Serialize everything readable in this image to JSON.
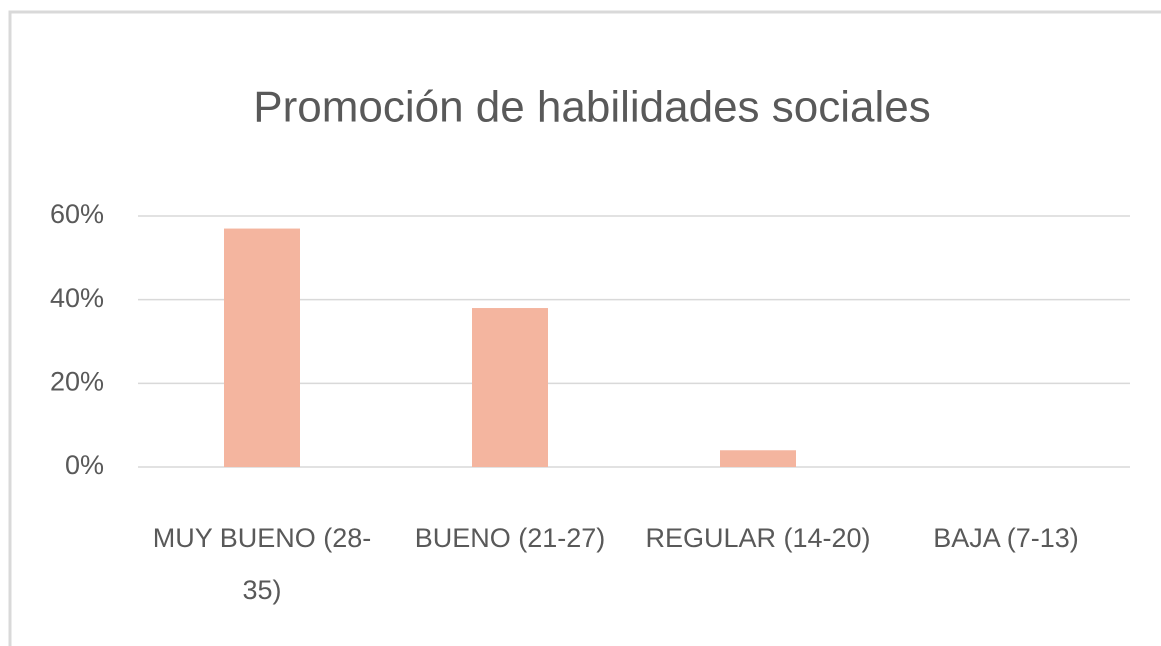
{
  "chart_data": {
    "type": "bar",
    "title": "Promoción de habilidades sociales",
    "categories": [
      "MUY BUENO (28-35)",
      "BUENO (21-27)",
      "REGULAR (14-20)",
      "BAJA (7-13)"
    ],
    "values": [
      57,
      38,
      4,
      0
    ],
    "color": "#f4b59f",
    "ylim": [
      0,
      60
    ],
    "yticks": [
      {
        "value": 0,
        "label": "0%"
      },
      {
        "value": 20,
        "label": "20%"
      },
      {
        "value": 40,
        "label": "40%"
      },
      {
        "value": 60,
        "label": "60%"
      }
    ],
    "grid": true
  }
}
